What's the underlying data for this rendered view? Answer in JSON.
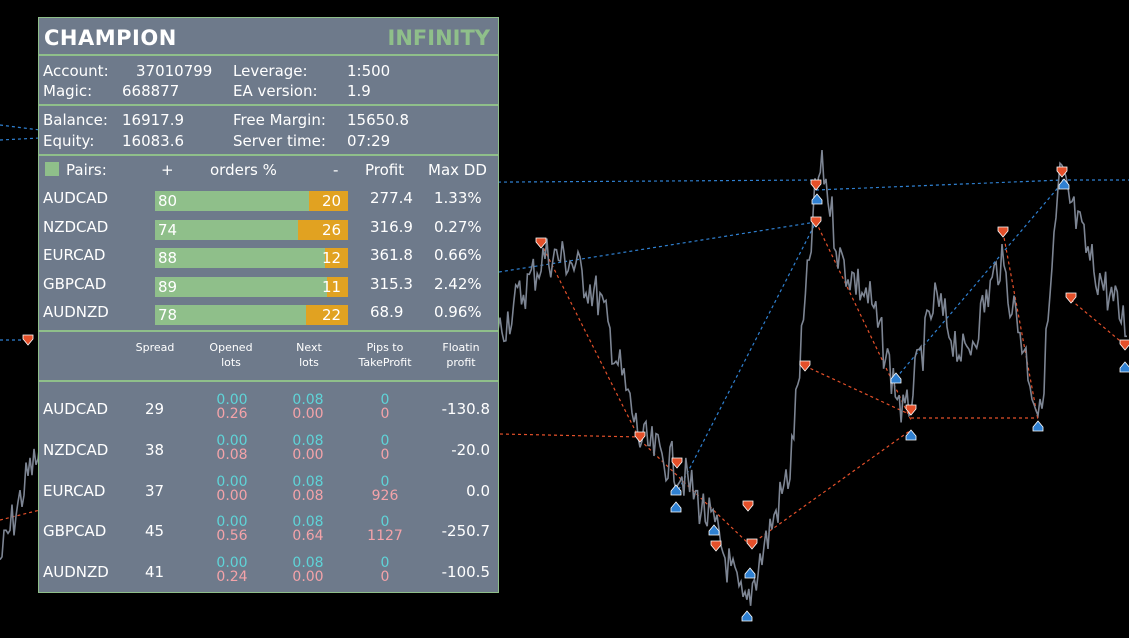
{
  "header": {
    "brand": "CHAMPION",
    "edition": "INFINITY"
  },
  "account": {
    "account_label": "Account:",
    "account_value": "37010799",
    "magic_label": "Magic:",
    "magic_value": "668877",
    "leverage_label": "Leverage:",
    "leverage_value": "1:500",
    "ea_label": "EA version:",
    "ea_value": "1.9"
  },
  "balance": {
    "balance_label": "Balance:",
    "balance_value": "16917.9",
    "equity_label": "Equity:",
    "equity_value": "16083.6",
    "free_margin_label": "Free Margin:",
    "free_margin_value": "15650.8",
    "server_time_label": "Server time:",
    "server_time_value": "07:29"
  },
  "pairs_table": {
    "headers": {
      "pairs": "Pairs:",
      "plus": "+",
      "orders": "orders %",
      "minus": "-",
      "profit": "Profit",
      "maxdd": "Max DD"
    },
    "rows": [
      {
        "pair": "AUDCAD",
        "plus": "80",
        "minus": "20",
        "profit": "277.4",
        "maxdd": "1.33%",
        "plus_pct": 80
      },
      {
        "pair": "NZDCAD",
        "plus": "74",
        "minus": "26",
        "profit": "316.9",
        "maxdd": "0.27%",
        "plus_pct": 74
      },
      {
        "pair": "EURCAD",
        "plus": "88",
        "minus": "12",
        "profit": "361.8",
        "maxdd": "0.66%",
        "plus_pct": 88
      },
      {
        "pair": "GBPCAD",
        "plus": "89",
        "minus": "11",
        "profit": "315.3",
        "maxdd": "2.42%",
        "plus_pct": 89
      },
      {
        "pair": "AUDNZD",
        "plus": "78",
        "minus": "22",
        "profit": "68.9",
        "maxdd": "0.96%",
        "plus_pct": 78
      }
    ]
  },
  "detail_table": {
    "headers": {
      "spread": "Spread",
      "opened1": "Opened",
      "opened2": "lots",
      "next1": "Next",
      "next2": "lots",
      "pips1": "Pips to",
      "pips2": "TakeProfit",
      "float1": "Floatin",
      "float2": "profit"
    },
    "rows": [
      {
        "pair": "AUDCAD",
        "spread": "29",
        "opened_buy": "0.00",
        "opened_sell": "0.26",
        "next_buy": "0.08",
        "next_sell": "0.00",
        "pips_buy": "0",
        "pips_sell": "0",
        "floating": "-130.8"
      },
      {
        "pair": "NZDCAD",
        "spread": "38",
        "opened_buy": "0.00",
        "opened_sell": "0.08",
        "next_buy": "0.08",
        "next_sell": "0.00",
        "pips_buy": "0",
        "pips_sell": "0",
        "floating": "-20.0"
      },
      {
        "pair": "EURCAD",
        "spread": "37",
        "opened_buy": "0.00",
        "opened_sell": "0.00",
        "next_buy": "0.08",
        "next_sell": "0.08",
        "pips_buy": "0",
        "pips_sell": "926",
        "floating": "0.0"
      },
      {
        "pair": "GBPCAD",
        "spread": "45",
        "opened_buy": "0.00",
        "opened_sell": "0.56",
        "next_buy": "0.08",
        "next_sell": "0.64",
        "pips_buy": "0",
        "pips_sell": "1127",
        "floating": "-250.7"
      },
      {
        "pair": "AUDNZD",
        "spread": "41",
        "opened_buy": "0.00",
        "opened_sell": "0.24",
        "next_buy": "0.08",
        "next_sell": "0.00",
        "pips_buy": "0",
        "pips_sell": "0",
        "floating": "-100.5"
      }
    ]
  },
  "colors": {
    "panel_bg": "#6e7a8b",
    "accent_green": "#8fbf8a",
    "minus_orange": "#e1a221",
    "buy_cyan": "#5fd4d8",
    "sell_pink": "#f4a3a9",
    "chart_bg": "#000000",
    "price_line": "#7d8593",
    "buy_arrow": "#2f80d1",
    "sell_arrow": "#e4502a"
  }
}
